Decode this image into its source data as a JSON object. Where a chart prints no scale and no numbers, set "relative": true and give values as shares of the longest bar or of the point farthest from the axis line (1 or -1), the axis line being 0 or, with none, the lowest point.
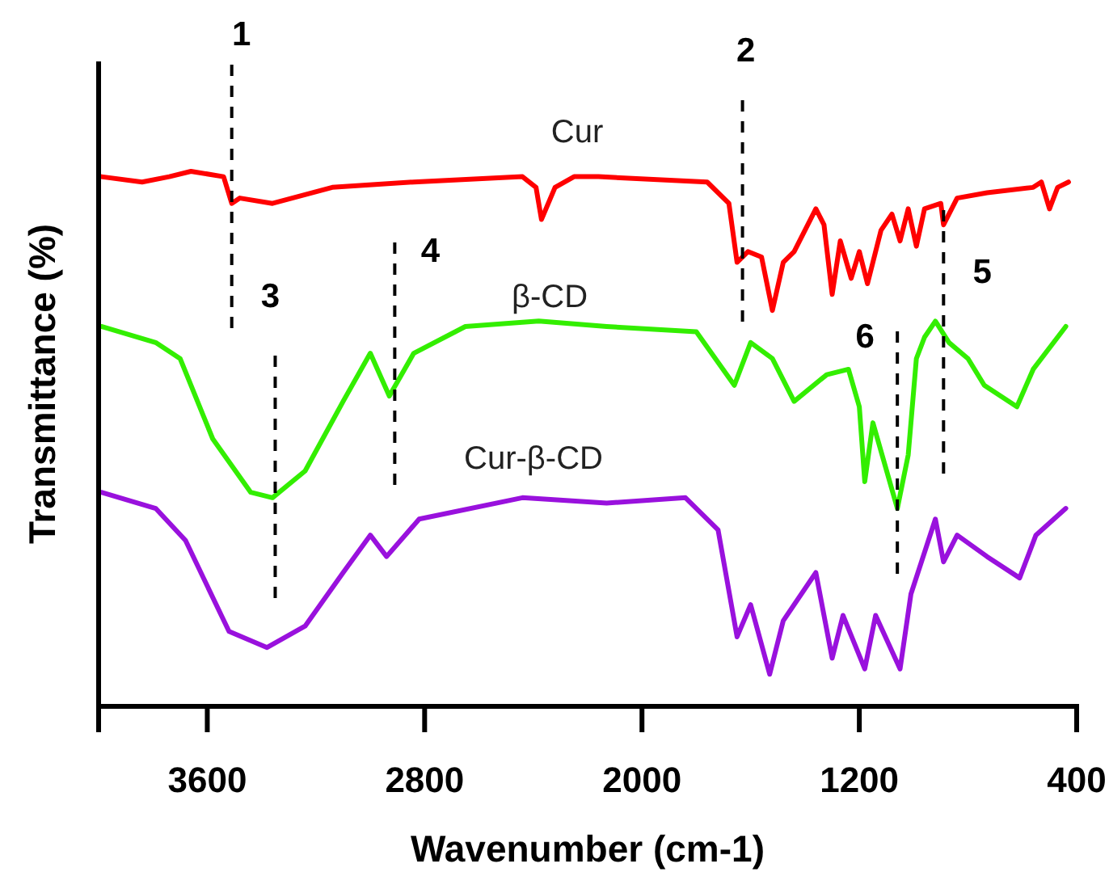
{
  "chart_data": {
    "type": "line",
    "relative": true,
    "xlabel": "Wavenumber (cm-1)",
    "ylabel": "Transmittance (%)",
    "xlim": [
      4000,
      400
    ],
    "xticks": [
      3600,
      2800,
      2000,
      1200,
      400
    ],
    "grid": false,
    "legend": false,
    "line_style": "solid",
    "marker": "none",
    "series": [
      {
        "name": "Cur",
        "color": "#ff0000",
        "x": [
          3990,
          3840,
          3740,
          3660,
          3540,
          3510,
          3480,
          3360,
          3140,
          2840,
          2440,
          2390,
          2370,
          2320,
          2250,
          2160,
          1760,
          1680,
          1650,
          1610,
          1560,
          1520,
          1480,
          1440,
          1360,
          1330,
          1300,
          1270,
          1230,
          1200,
          1170,
          1120,
          1080,
          1050,
          1020,
          990,
          960,
          900,
          890,
          840,
          730,
          560,
          530,
          500,
          470,
          430
        ],
        "values": [
          0.99,
          0.98,
          0.99,
          1.0,
          0.99,
          0.94,
          0.95,
          0.94,
          0.97,
          0.98,
          0.99,
          0.97,
          0.91,
          0.97,
          0.99,
          0.99,
          0.98,
          0.94,
          0.83,
          0.85,
          0.84,
          0.74,
          0.83,
          0.85,
          0.93,
          0.9,
          0.77,
          0.87,
          0.8,
          0.85,
          0.79,
          0.89,
          0.92,
          0.87,
          0.93,
          0.86,
          0.93,
          0.94,
          0.9,
          0.95,
          0.96,
          0.97,
          0.98,
          0.93,
          0.97,
          0.98
        ]
      },
      {
        "name": "β-CD",
        "color": "#33ee00",
        "x": [
          3990,
          3790,
          3700,
          3580,
          3440,
          3360,
          3240,
          3100,
          3000,
          2930,
          2840,
          2650,
          2380,
          2130,
          1800,
          1660,
          1600,
          1520,
          1440,
          1320,
          1240,
          1200,
          1180,
          1150,
          1060,
          1020,
          990,
          960,
          920,
          870,
          800,
          740,
          620,
          560,
          440
        ],
        "values": [
          0.71,
          0.68,
          0.65,
          0.5,
          0.4,
          0.39,
          0.44,
          0.57,
          0.66,
          0.58,
          0.66,
          0.71,
          0.72,
          0.71,
          0.7,
          0.6,
          0.68,
          0.65,
          0.57,
          0.62,
          0.63,
          0.56,
          0.42,
          0.53,
          0.37,
          0.47,
          0.65,
          0.69,
          0.72,
          0.68,
          0.65,
          0.6,
          0.56,
          0.63,
          0.71
        ]
      },
      {
        "name": "Cur-β-CD",
        "color": "#9911dd",
        "x": [
          3990,
          3790,
          3680,
          3520,
          3380,
          3240,
          3100,
          3000,
          2940,
          2820,
          2440,
          2130,
          1840,
          1720,
          1650,
          1600,
          1530,
          1480,
          1360,
          1300,
          1260,
          1180,
          1140,
          1050,
          1010,
          920,
          890,
          840,
          730,
          610,
          550,
          440
        ],
        "values": [
          0.4,
          0.37,
          0.31,
          0.14,
          0.11,
          0.15,
          0.25,
          0.32,
          0.28,
          0.35,
          0.39,
          0.38,
          0.39,
          0.33,
          0.13,
          0.19,
          0.06,
          0.16,
          0.25,
          0.09,
          0.17,
          0.07,
          0.17,
          0.07,
          0.21,
          0.35,
          0.27,
          0.32,
          0.28,
          0.24,
          0.32,
          0.37
        ]
      }
    ],
    "ref_lines": [
      {
        "axis": "x",
        "value": 3510,
        "line_style": "dashed",
        "color": "#000000"
      },
      {
        "axis": "x",
        "value": 1630,
        "line_style": "dashed",
        "color": "#000000"
      },
      {
        "axis": "x",
        "value": 3350,
        "line_style": "dashed",
        "color": "#000000"
      },
      {
        "axis": "x",
        "value": 2910,
        "line_style": "dashed",
        "color": "#000000"
      },
      {
        "axis": "x",
        "value": 890,
        "line_style": "dashed",
        "color": "#000000"
      },
      {
        "axis": "x",
        "value": 1060,
        "line_style": "dashed",
        "color": "#000000"
      }
    ],
    "annotations": [
      "1",
      "2",
      "3",
      "4",
      "5",
      "6"
    ]
  }
}
